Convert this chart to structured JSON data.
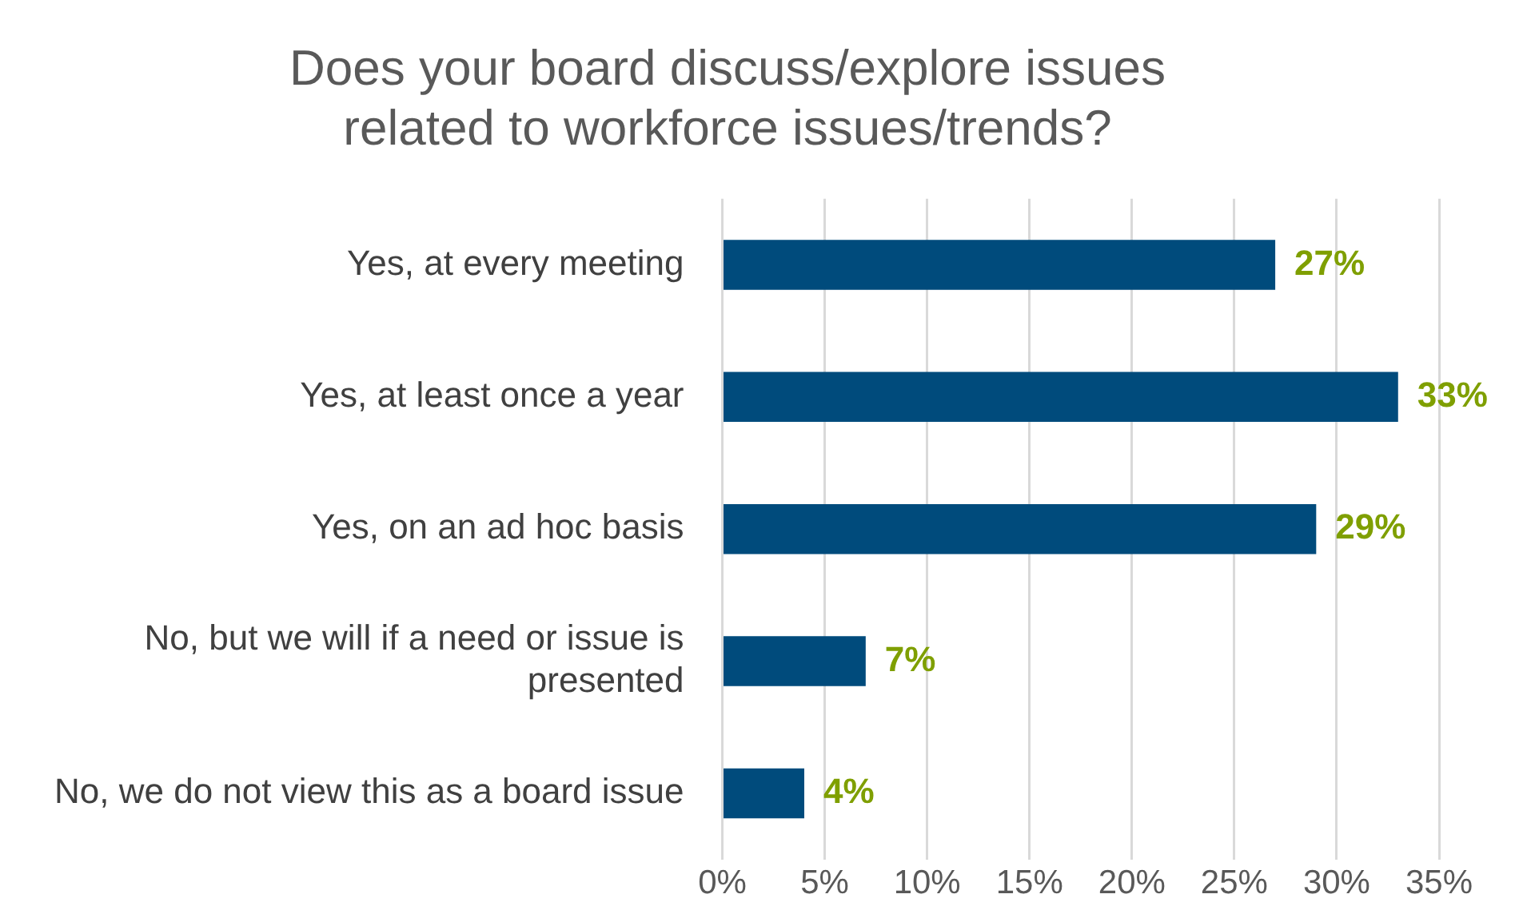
{
  "chart_data": {
    "type": "bar",
    "orientation": "horizontal",
    "title": "Does your board discuss/explore issues related to workforce issues/trends?",
    "categories": [
      "Yes, at every meeting",
      "Yes, at least once a year",
      "Yes, on an ad hoc basis",
      "No, but we will if a need or issue is presented",
      "No, we do not view this as a board issue"
    ],
    "values": [
      27,
      33,
      29,
      7,
      4
    ],
    "color": "#004b7c",
    "value_labels": [
      "27%",
      "33%",
      "29%",
      "7%",
      "4%"
    ],
    "xlim": [
      0,
      35
    ],
    "xticks": [
      {
        "value": 0,
        "label": "0%"
      },
      {
        "value": 5,
        "label": "5%"
      },
      {
        "value": 10,
        "label": "10%"
      },
      {
        "value": 15,
        "label": "15%"
      },
      {
        "value": 20,
        "label": "20%"
      },
      {
        "value": 25,
        "label": "25%"
      },
      {
        "value": 30,
        "label": "30%"
      },
      {
        "value": 35,
        "label": "35%"
      }
    ],
    "grid": "x",
    "legend": false
  }
}
